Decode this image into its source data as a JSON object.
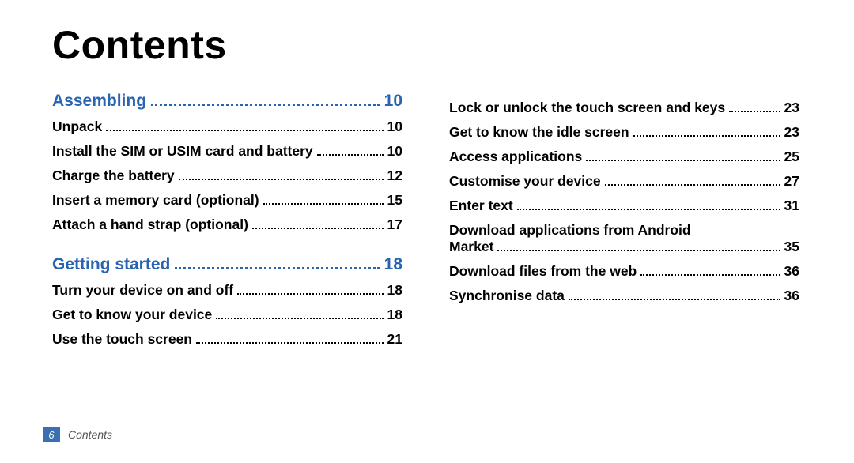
{
  "title": "Contents",
  "footer": {
    "page": "6",
    "label": "Contents"
  },
  "colors": {
    "accent": "#2864b0",
    "text": "#000000",
    "footer_box": "#3a6fb1",
    "footer_text": "#555555",
    "bg": "#ffffff"
  },
  "left": {
    "sections": [
      {
        "title": "Assembling",
        "page": "10",
        "items": [
          {
            "label": "Unpack",
            "page": "10"
          },
          {
            "label": "Install the SIM or USIM card and battery",
            "page": "10"
          },
          {
            "label": "Charge the battery",
            "page": "12"
          },
          {
            "label": "Insert a memory card (optional)",
            "page": "15"
          },
          {
            "label": "Attach a hand strap (optional)",
            "page": "17"
          }
        ]
      },
      {
        "title": "Getting started",
        "page": "18",
        "items": [
          {
            "label": "Turn your device on and off",
            "page": "18"
          },
          {
            "label": "Get to know your device",
            "page": "18"
          },
          {
            "label": "Use the touch screen",
            "page": "21"
          }
        ]
      }
    ]
  },
  "right": {
    "items": [
      {
        "label": "Lock or unlock the touch screen and keys",
        "page": "23"
      },
      {
        "label": "Get to know the idle screen",
        "page": "23"
      },
      {
        "label": "Access applications",
        "page": "25"
      },
      {
        "label": "Customise your device",
        "page": "27"
      },
      {
        "label": "Enter text",
        "page": "31"
      },
      {
        "label_line1": "Download applications from Android",
        "label_line2": "Market",
        "page": "35",
        "twoline": true
      },
      {
        "label": "Download files from the web",
        "page": "36"
      },
      {
        "label": "Synchronise data",
        "page": "36"
      }
    ]
  }
}
